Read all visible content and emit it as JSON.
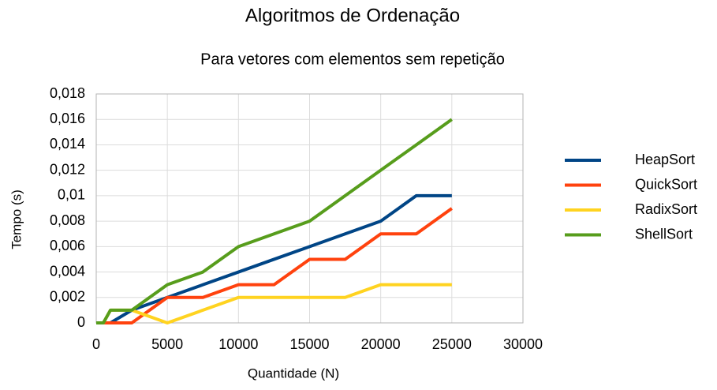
{
  "chart_data": {
    "type": "line",
    "title": "Algoritmos de Ordenação",
    "subtitle": "Para vetores com elementos sem repetição",
    "x_label": "Quantidade (N)",
    "y_label": "Tempo (s)",
    "x": [
      0,
      500,
      1000,
      2500,
      5000,
      7500,
      10000,
      12500,
      15000,
      17500,
      20000,
      22500,
      25000
    ],
    "series": [
      {
        "name": "HeapSort",
        "color": "#004586",
        "values": [
          0,
          0,
          0,
          0.001,
          0.002,
          0.003,
          0.004,
          0.005,
          0.006,
          0.007,
          0.008,
          0.01,
          0.01
        ]
      },
      {
        "name": "QuickSort",
        "color": "#ff420e",
        "values": [
          0,
          0,
          0,
          0,
          0.002,
          0.002,
          0.003,
          0.003,
          0.005,
          0.005,
          0.007,
          0.007,
          0.009
        ]
      },
      {
        "name": "RadixSort",
        "color": "#ffd320",
        "values": [
          0,
          0,
          0.001,
          0.001,
          0,
          0.001,
          0.002,
          0.002,
          0.002,
          0.002,
          0.003,
          0.003,
          0.003
        ]
      },
      {
        "name": "ShellSort",
        "color": "#579d1c",
        "values": [
          0,
          0,
          0.001,
          0.001,
          0.003,
          0.004,
          0.006,
          0.007,
          0.008,
          0.01,
          0.012,
          0.014,
          0.016
        ]
      }
    ],
    "xlim": [
      0,
      30000
    ],
    "xticks": [
      0,
      5000,
      10000,
      15000,
      20000,
      25000,
      30000
    ],
    "ylim": [
      0,
      0.018
    ],
    "yticks": [
      0,
      {
        "value": 0.002,
        "label": "0,002"
      },
      {
        "value": 0.004,
        "label": "0,004"
      },
      {
        "value": 0.006,
        "label": "0,006"
      },
      {
        "value": 0.008,
        "label": "0,008"
      },
      {
        "value": 0.01,
        "label": "0,01"
      },
      {
        "value": 0.012,
        "label": "0,012"
      },
      {
        "value": 0.014,
        "label": "0,014"
      },
      {
        "value": 0.016,
        "label": "0,016"
      },
      {
        "value": 0.018,
        "label": "0,018"
      }
    ],
    "grid": true,
    "legend": "right"
  }
}
